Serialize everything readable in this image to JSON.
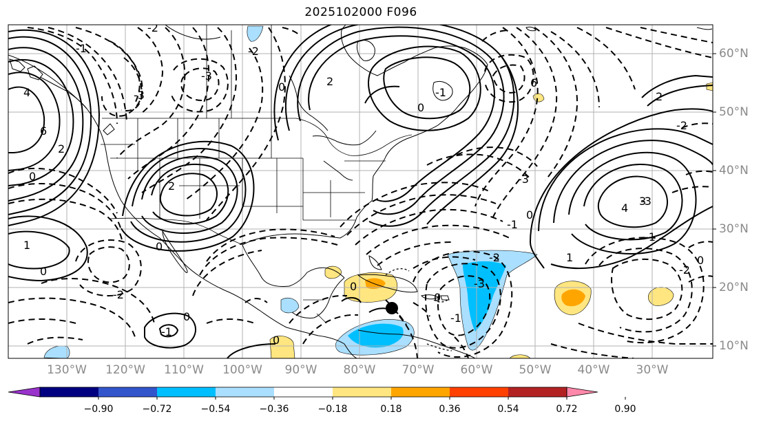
{
  "title": "2025102000 F096",
  "lon_labels": [
    "130°W",
    "120°W",
    "110°W",
    "100°W",
    "90°W",
    "80°W",
    "70°W",
    "60°W",
    "50°W",
    "40°W",
    "30°W"
  ],
  "lat_labels": [
    "60°N",
    "50°N",
    "40°N",
    "30°N",
    "20°N",
    "10°N"
  ],
  "colorbar": {
    "ticks": [
      "−0.90",
      "−0.72",
      "−0.54",
      "−0.36",
      "−0.18",
      "0.18",
      "0.36",
      "0.54",
      "0.72",
      "0.90"
    ],
    "colors": [
      "#9933cc",
      "#000080",
      "#3355cc",
      "#00bfff",
      "#aadfff",
      "#ffffff",
      "#ffe680",
      "#ffa500",
      "#ff4000",
      "#b22222",
      "#ff88aa"
    ]
  },
  "contour_labels": [
    {
      "text": "4",
      "where": "pacific-nw"
    },
    {
      "text": "6",
      "where": "pacific-nw"
    },
    {
      "text": "2",
      "where": "pacific-nw"
    },
    {
      "text": "0",
      "where": "pacific-nw"
    },
    {
      "text": "-1",
      "where": "canada-west"
    },
    {
      "text": "-3",
      "where": "canada-west"
    },
    {
      "text": "-2",
      "where": "canada-west"
    },
    {
      "text": "-3",
      "where": "rockies"
    },
    {
      "text": "-2",
      "where": "rockies"
    },
    {
      "text": "0",
      "where": "canada"
    },
    {
      "text": "2",
      "where": "canada-high"
    },
    {
      "text": "0",
      "where": "great-lakes"
    },
    {
      "text": "-1",
      "where": "atlantic-north"
    },
    {
      "text": "6",
      "where": "atlantic-north"
    },
    {
      "text": "2",
      "where": "atlantic-east"
    },
    {
      "text": "-2",
      "where": "atlantic-east"
    },
    {
      "text": "-3",
      "where": "atlantic-east"
    },
    {
      "text": "0",
      "where": "atlantic-east"
    },
    {
      "text": "-1",
      "where": "atlantic-east"
    },
    {
      "text": "4",
      "where": "atlantic-east"
    },
    {
      "text": "3",
      "where": "atlantic-east"
    },
    {
      "text": "2",
      "where": "southwest"
    },
    {
      "text": "0",
      "where": "southwest"
    },
    {
      "text": "1",
      "where": "pacific-south"
    },
    {
      "text": "0",
      "where": "pacific-south"
    },
    {
      "text": "-2",
      "where": "pacific-south"
    },
    {
      "text": "-1",
      "where": "pacific-tropics"
    },
    {
      "text": "0",
      "where": "pacific-tropics"
    },
    {
      "text": "0",
      "where": "caribbean"
    },
    {
      "text": "0",
      "where": "caribbean"
    },
    {
      "text": "-1",
      "where": "tropical-atlantic"
    },
    {
      "text": "-3",
      "where": "tropical-atlantic"
    },
    {
      "text": "-2",
      "where": "tropical-atlantic"
    },
    {
      "text": "0",
      "where": "tropical-atlantic"
    },
    {
      "text": "1",
      "where": "central-atlantic"
    },
    {
      "text": "-3",
      "where": "central-atlantic"
    },
    {
      "text": "-1",
      "where": "central-atlantic"
    },
    {
      "text": "-2",
      "where": "far-east"
    },
    {
      "text": "0",
      "where": "far-east"
    }
  ]
}
